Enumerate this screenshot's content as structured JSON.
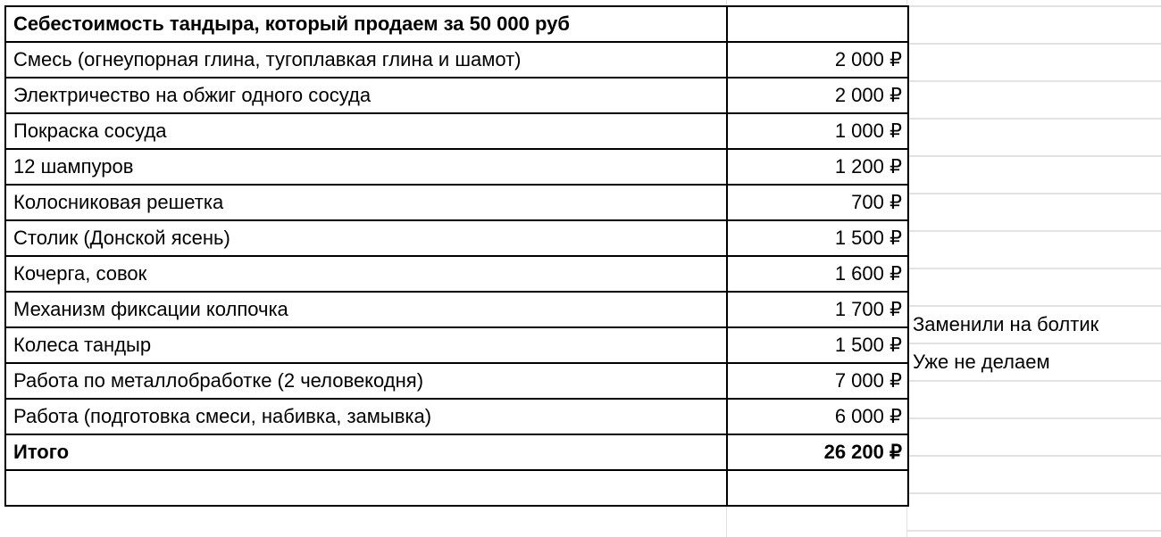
{
  "sheet": {
    "title": "Себестоимость тандыра, который продаем за 50 000 руб",
    "rows": [
      {
        "item": "Смесь (огнеупорная глина, тугоплавкая глина и шамот)",
        "cost": "2 000 ₽",
        "note": ""
      },
      {
        "item": "Электричество на обжиг одного сосуда",
        "cost": "2 000 ₽",
        "note": ""
      },
      {
        "item": "Покраска сосуда",
        "cost": "1 000 ₽",
        "note": ""
      },
      {
        "item": "12 шампуров",
        "cost": "1 200 ₽",
        "note": ""
      },
      {
        "item": "Колосниковая решетка",
        "cost": "700 ₽",
        "note": ""
      },
      {
        "item": "Столик (Донской ясень)",
        "cost": "1 500 ₽",
        "note": ""
      },
      {
        "item": "Кочерга, совок",
        "cost": "1 600 ₽",
        "note": ""
      },
      {
        "item": "Механизм фиксации колпочка",
        "cost": "1 700 ₽",
        "note": "Заменили на болтик"
      },
      {
        "item": "Колеса тандыр",
        "cost": "1 500 ₽",
        "note": "Уже не делаем"
      },
      {
        "item": "Работа по металлобработке (2 человекодня)",
        "cost": "7 000 ₽",
        "note": ""
      },
      {
        "item": "Работа (подготовка смеси, набивка, замывка)",
        "cost": "6 000 ₽",
        "note": ""
      }
    ],
    "total": {
      "label": "Итого",
      "cost": "26 200 ₽"
    }
  }
}
